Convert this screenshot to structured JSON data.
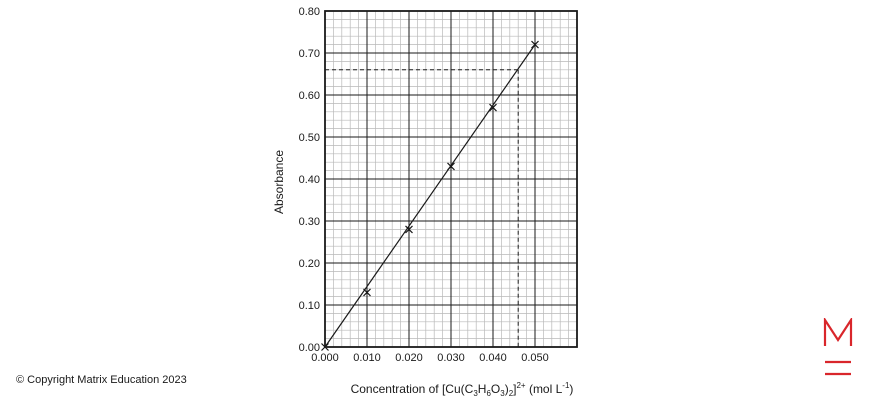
{
  "chart_data": {
    "type": "scatter",
    "x": [
      0.0,
      0.01,
      0.02,
      0.03,
      0.04,
      0.05
    ],
    "y": [
      0.0,
      0.13,
      0.28,
      0.43,
      0.57,
      0.72
    ],
    "line_of_best_fit": {
      "x": [
        0.0,
        0.05
      ],
      "y": [
        0.0,
        0.72
      ]
    },
    "marker": "x",
    "xlabel": {
      "pre": "Concentration of [Cu(C",
      "s1": "3",
      "m1": "H",
      "s2": "6",
      "m2": "O",
      "s3": "3",
      "m3": ")",
      "s4": "2",
      "m4": "]",
      "sup": "2+",
      "m5": " (mol L",
      "sup2": "-1",
      "post": ")"
    },
    "ylabel": "Absorbance",
    "xlim": [
      0.0,
      0.06
    ],
    "ylim": [
      0.0,
      0.8
    ],
    "x_ticks": [
      "0.000",
      "0.010",
      "0.020",
      "0.030",
      "0.040",
      "0.050"
    ],
    "x_tick_values": [
      0.0,
      0.01,
      0.02,
      0.03,
      0.04,
      0.05
    ],
    "y_ticks": [
      "0.00",
      "0.10",
      "0.20",
      "0.30",
      "0.40",
      "0.50",
      "0.60",
      "0.70",
      "0.80"
    ],
    "y_tick_values": [
      0.0,
      0.1,
      0.2,
      0.3,
      0.4,
      0.5,
      0.6,
      0.7,
      0.8
    ],
    "grid": true,
    "reading": {
      "x": 0.046,
      "y": 0.66,
      "style": "dashed"
    }
  },
  "footer": {
    "copyright": "© Copyright Matrix Education 2023"
  },
  "colors": {
    "brand": "#d9262b",
    "ink": "#1a1a1a",
    "minor_grid": "#b9b9b9",
    "major_grid": "#1a1a1a"
  }
}
